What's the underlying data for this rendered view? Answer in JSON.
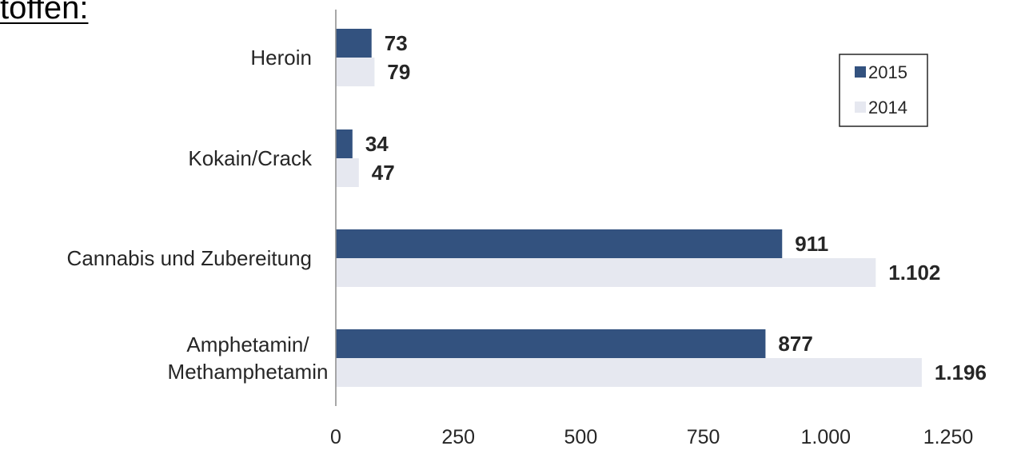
{
  "header": {
    "title_fragment": "toffen:"
  },
  "colors": {
    "series_2015": "#33527f",
    "series_2014": "#e6e8f0",
    "axis": "#8c8c8c",
    "text": "#262626"
  },
  "chart_data": {
    "type": "bar",
    "orientation": "horizontal",
    "categories": [
      "Heroin",
      "Kokain/Crack",
      "Cannabis und Zubereitung",
      "Amphetamin/\nMethamphetamin"
    ],
    "series": [
      {
        "name": "2015",
        "values": [
          73,
          34,
          911,
          877
        ],
        "labels": [
          "73",
          "34",
          "911",
          "877"
        ]
      },
      {
        "name": "2014",
        "values": [
          79,
          47,
          1102,
          1196
        ],
        "labels": [
          "79",
          "47",
          "1.102",
          "1.196"
        ]
      }
    ],
    "xlim": [
      0,
      1250
    ],
    "xticks": [
      0,
      250,
      500,
      750,
      1000,
      1250
    ],
    "xtick_labels": [
      "0",
      "250",
      "500",
      "750",
      "1.000",
      "1.250"
    ],
    "grid": false,
    "legend": {
      "position": "top-right",
      "entries": [
        "2015",
        "2014"
      ]
    }
  }
}
